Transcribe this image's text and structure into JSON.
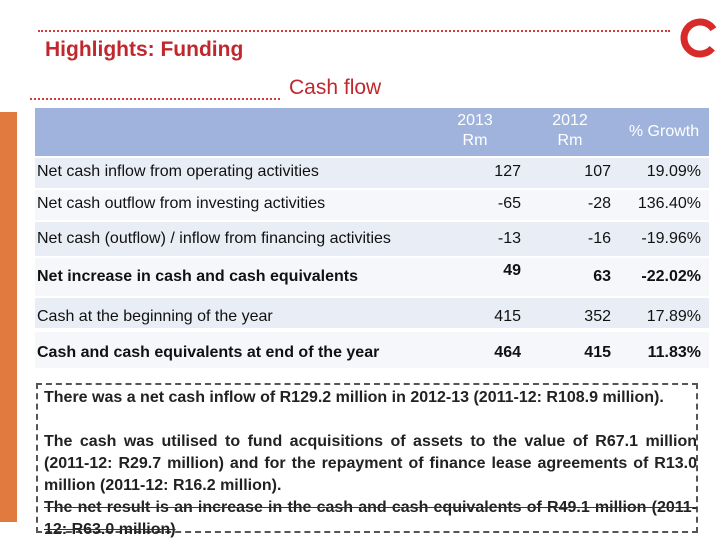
{
  "slide": {
    "title": "Highlights: Funding",
    "subtitle": "Cash flow",
    "colors": {
      "accent": "#c0282d",
      "header": "#9fb3dc",
      "side_bar": "#e07a3f"
    }
  },
  "table": {
    "headers": {
      "col1_year": "2013",
      "col1_unit": "Rm",
      "col2_year": "2012",
      "col2_unit": "Rm",
      "col3": "% Growth"
    },
    "rows": [
      {
        "label": "Net cash inflow from operating activities",
        "v2013": "127",
        "v2012": "107",
        "growth": "19.09%"
      },
      {
        "label": "Net cash outflow from investing activities",
        "v2013": "-65",
        "v2012": "-28",
        "growth": "136.40%"
      },
      {
        "label": "Net cash (outflow) / inflow from financing activities",
        "v2013": "-13",
        "v2012": "-16",
        "growth": "-19.96%"
      },
      {
        "label": "Net increase in cash and cash equivalents",
        "v2013": "49",
        "v2012": "63",
        "growth": "-22.02%"
      },
      {
        "label": "Cash at the beginning of the year",
        "v2013": "415",
        "v2012": "352",
        "growth": "17.89%"
      },
      {
        "label": "Cash and cash equivalents at end of the year",
        "v2013": "464",
        "v2012": "415",
        "growth": "11.83%"
      }
    ]
  },
  "notes": {
    "p1": "There was a net cash inflow of R129.2 million in 2012-13 (2011-12: R108.9 million).",
    "p2": "The cash was utilised to fund acquisitions of assets to the value of R67.1 million (2011-12: R29.7 million) and for the repayment of finance lease agreements of R13.0 million (2011-12: R16.2 million).",
    "p3": "The net result is an increase in the cash and cash equivalents of R49.1 million (2011-12: R63.0 million)"
  }
}
